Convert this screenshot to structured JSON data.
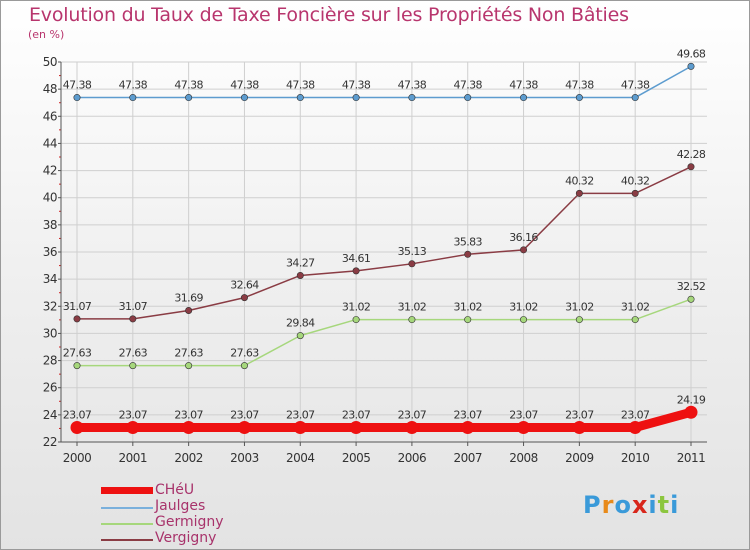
{
  "title": "Evolution du Taux de Taxe Foncière sur les Propriétés Non Bâties",
  "unit_label": "(en %)",
  "chart_data": {
    "type": "line",
    "title": "Evolution du Taux de Taxe Foncière sur les Propriétés Non Bâties",
    "ylabel": "(en %)",
    "xlabel": "",
    "ylim": [
      22,
      50
    ],
    "yticks": [
      22,
      24,
      26,
      28,
      30,
      32,
      34,
      36,
      38,
      40,
      42,
      44,
      46,
      48,
      50
    ],
    "categories": [
      "2000",
      "2001",
      "2002",
      "2003",
      "2004",
      "2005",
      "2006",
      "2007",
      "2008",
      "2009",
      "2010",
      "2011"
    ],
    "series": [
      {
        "name": "Jaulges",
        "color": "#5d9ccf",
        "values": [
          47.38,
          47.38,
          47.38,
          47.38,
          47.38,
          47.38,
          47.38,
          47.38,
          47.38,
          47.38,
          47.38,
          49.68
        ]
      },
      {
        "name": "Vergigny",
        "color": "#8a3c44",
        "values": [
          31.07,
          31.07,
          31.69,
          32.64,
          34.27,
          34.61,
          35.13,
          35.83,
          36.16,
          40.32,
          40.32,
          42.28
        ]
      },
      {
        "name": "Germigny",
        "color": "#a6d77c",
        "values": [
          27.63,
          27.63,
          27.63,
          27.63,
          29.84,
          31.02,
          31.02,
          31.02,
          31.02,
          31.02,
          31.02,
          32.52
        ]
      },
      {
        "name": "CHéU",
        "color": "#ee1111",
        "values": [
          23.07,
          23.07,
          23.07,
          23.07,
          23.07,
          23.07,
          23.07,
          23.07,
          23.07,
          23.07,
          23.07,
          24.19
        ]
      }
    ]
  },
  "legend": [
    {
      "name": "CHéU",
      "color": "#ee1111"
    },
    {
      "name": "Jaulges",
      "color": "#7ab0dc"
    },
    {
      "name": "Germigny",
      "color": "#a6d77c"
    },
    {
      "name": "Vergigny",
      "color": "#8a3c44"
    }
  ],
  "logo": {
    "text": "Proxiti",
    "letters": [
      "P",
      "r",
      "o",
      "x",
      "i",
      "t",
      "i"
    ],
    "colors": [
      "#3a9ad9",
      "#e88a1a",
      "#3a9ad9",
      "#d8261b",
      "#3a9ad9",
      "#8cc63f",
      "#3a9ad9"
    ]
  }
}
